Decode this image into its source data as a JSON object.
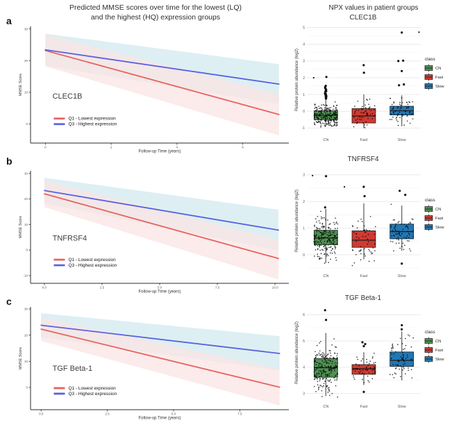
{
  "header": {
    "left_title_line1": "Predicted MMSE scores over time for the lowest (LQ)",
    "left_title_line2": "and the highest (HQ) expression groups",
    "right_title": "NPX values in patient groups"
  },
  "colors": {
    "q1_line_red": "#E8625D",
    "q3_line_blue": "#5A62E0",
    "ribbon_pink": "#FBE3E3",
    "ribbon_cyan": "#D9EDF2",
    "cn_green": "#4F9153",
    "fast_red": "#CF3A32",
    "slow_blue": "#2277B4",
    "jitter_black": "#111111"
  },
  "chart_data": [
    {
      "panel": "a",
      "line_chart": {
        "type": "line",
        "gene": "CLEC1B",
        "xlabel": "Follow-up Time (years)",
        "ylabel": "MMSE Score",
        "xlim": [
          -0.45,
          7.4
        ],
        "ylim": [
          -6,
          30.8
        ],
        "xticks": [
          {
            "v": 0,
            "label": "0"
          },
          {
            "v": 2,
            "label": "2"
          },
          {
            "v": 4,
            "label": "4"
          },
          {
            "v": 6,
            "label": "6"
          }
        ],
        "yticks": [
          {
            "v": 0,
            "label": "0"
          },
          {
            "v": 10,
            "label": "10"
          },
          {
            "v": 20,
            "label": "20"
          },
          {
            "v": 30,
            "label": "30"
          }
        ],
        "series": [
          {
            "name": "Q1 - Lowest expression",
            "color": "#E8625D",
            "x0": 0,
            "y0": 23.2,
            "x1": 7.1,
            "y1": 3.0,
            "ribbon": {
              "color": "#FBE3E3",
              "hi0": 28.2,
              "lo0": 18.2,
              "hi1": 9.5,
              "lo1": -3.6
            }
          },
          {
            "name": "Q3 - Highest expression",
            "color": "#5A62E0",
            "x0": 0,
            "y0": 23.4,
            "x1": 7.1,
            "y1": 12.6,
            "ribbon": {
              "color": "#D9EDF2",
              "hi0": 28.5,
              "lo0": 18.4,
              "hi1": 18.9,
              "lo1": 6.3
            }
          }
        ]
      },
      "box_chart": {
        "type": "boxplot",
        "title": "CLEC1B",
        "ylabel": "Relative protein abundance (log2)",
        "ylim": [
          -1.4,
          5.15
        ],
        "yticks": [
          {
            "v": -1,
            "label": "-1"
          },
          {
            "v": 0,
            "label": "0"
          },
          {
            "v": 1,
            "label": "1"
          },
          {
            "v": 2,
            "label": "2"
          },
          {
            "v": 3,
            "label": "3"
          },
          {
            "v": 4,
            "label": "4"
          },
          {
            "v": 5,
            "label": "5"
          }
        ],
        "minor_step": 0.5,
        "categories": [
          "CN",
          "Fast",
          "Slow"
        ],
        "groups": [
          {
            "name": "CN",
            "color": "#4F9153",
            "n": 215,
            "lo": -0.9,
            "q1": -0.5,
            "med": -0.25,
            "q3": 0.03,
            "hi": 0.68,
            "spread": [
              -0.95,
              0.66
            ],
            "outliers": [
              {
                "v": 0.75
              },
              {
                "v": 0.8
              },
              {
                "v": 0.85
              },
              {
                "v": 0.9
              },
              {
                "v": 0.95
              },
              {
                "v": 1.0
              },
              {
                "v": 1.05
              },
              {
                "v": 1.1
              },
              {
                "v": 1.15
              },
              {
                "v": 1.2
              },
              {
                "v": 1.25
              },
              {
                "v": 1.3
              },
              {
                "v": 1.38
              },
              {
                "v": 1.45
              },
              {
                "v": 1.52
              },
              {
                "v": 2.05
              }
            ]
          },
          {
            "name": "Fast",
            "color": "#CF3A32",
            "n": 55,
            "lo": -1.0,
            "q1": -0.7,
            "med": -0.28,
            "q3": 0.16,
            "hi": 1.0,
            "spread": [
              -1.02,
              1.0
            ],
            "outliers": [
              {
                "v": 2.3
              },
              {
                "v": 2.75
              }
            ]
          },
          {
            "name": "Slow",
            "color": "#2277B4",
            "n": 68,
            "lo": -0.9,
            "q1": -0.22,
            "med": 0.03,
            "q3": 0.3,
            "hi": 0.95,
            "spread": [
              -0.9,
              1.05
            ],
            "outliers": [
              {
                "v": 1.55,
                "dx": -4
              },
              {
                "v": 1.6,
                "dx": 3
              },
              {
                "v": 2.4,
                "dx": 0
              },
              {
                "v": 3.0,
                "dx": -5
              },
              {
                "v": 3.02,
                "dx": 2
              },
              {
                "v": 4.7,
                "dx": 0
              }
            ]
          }
        ],
        "loose_points": [
          {
            "f": 0.985,
            "v": 4.72
          },
          {
            "f": 0.06,
            "v": 2.0
          }
        ],
        "legend": {
          "title": "class",
          "items": [
            {
              "label": "CN",
              "color": "#4F9153"
            },
            {
              "label": "Fast",
              "color": "#CF3A32"
            },
            {
              "label": "Slow",
              "color": "#2277B4"
            }
          ]
        }
      }
    },
    {
      "panel": "b",
      "line_chart": {
        "type": "line",
        "gene": "TNFRSF4",
        "xlabel": "Follow-up Time (years)",
        "ylabel": "MMSE Score",
        "xlim": [
          -0.6,
          10.6
        ],
        "ylim": [
          -13,
          31
        ],
        "xticks": [
          {
            "v": 0,
            "label": "0.0"
          },
          {
            "v": 2.5,
            "label": "2.5"
          },
          {
            "v": 5,
            "label": "5.0"
          },
          {
            "v": 7.5,
            "label": "7.5"
          },
          {
            "v": 10,
            "label": "10.0"
          }
        ],
        "yticks": [
          {
            "v": -10,
            "label": "-10"
          },
          {
            "v": 0,
            "label": "0"
          },
          {
            "v": 10,
            "label": "10"
          },
          {
            "v": 20,
            "label": "20"
          },
          {
            "v": 30,
            "label": "30"
          }
        ],
        "series": [
          {
            "name": "Q1 - Lowest expression",
            "color": "#E8625D",
            "x0": 0,
            "y0": 22.0,
            "x1": 10.15,
            "y1": -3.3,
            "ribbon": {
              "color": "#FBE3E3",
              "hi0": 27.2,
              "lo0": 16.8,
              "hi1": 4.0,
              "lo1": -11.5
            }
          },
          {
            "name": "Q3 - Highest expression",
            "color": "#5A62E0",
            "x0": 0,
            "y0": 23.3,
            "x1": 10.15,
            "y1": 7.8,
            "ribbon": {
              "color": "#D9EDF2",
              "hi0": 28.3,
              "lo0": 18.3,
              "hi1": 15.8,
              "lo1": -0.2
            }
          }
        ]
      },
      "box_chart": {
        "type": "boxplot",
        "title": "TNFRSF4",
        "ylabel": "Relative protein abundance (log2)",
        "ylim": [
          -0.6,
          3.15
        ],
        "yticks": [
          {
            "v": 0,
            "label": "0"
          },
          {
            "v": 1,
            "label": "1"
          },
          {
            "v": 2,
            "label": "2"
          },
          {
            "v": 3,
            "label": "3"
          }
        ],
        "minor_step": 0.5,
        "categories": [
          "CN",
          "Fast",
          "Slow"
        ],
        "groups": [
          {
            "name": "CN",
            "color": "#4F9153",
            "n": 215,
            "lo": -0.31,
            "q1": 0.38,
            "med": 0.63,
            "q3": 0.92,
            "hi": 1.72,
            "spread": [
              -0.35,
              1.7
            ],
            "outliers": [
              {
                "v": 2.95
              },
              {
                "v": 1.78,
                "dx": -1
              }
            ]
          },
          {
            "name": "Fast",
            "color": "#CF3A32",
            "n": 55,
            "lo": -0.17,
            "q1": 0.28,
            "med": 0.55,
            "q3": 0.9,
            "hi": 1.93,
            "spread": [
              -0.45,
              1.9
            ],
            "outliers": [
              {
                "v": 2.55
              },
              {
                "v": 2.2
              }
            ]
          },
          {
            "name": "Slow",
            "color": "#2277B4",
            "n": 68,
            "lo": 0.15,
            "q1": 0.6,
            "med": 0.87,
            "q3": 1.15,
            "hi": 1.85,
            "spread": [
              0.12,
              1.9
            ],
            "outliers": [
              {
                "v": 2.4,
                "dx": -3
              },
              {
                "v": 2.25,
                "dx": 5
              },
              {
                "v": -0.33,
                "dx": 0
              }
            ]
          }
        ],
        "loose_points": [
          {
            "f": 0.05,
            "v": 2.97
          },
          {
            "f": 0.33,
            "v": 2.55
          }
        ],
        "legend": {
          "title": "class",
          "items": [
            {
              "label": "CN",
              "color": "#4F9153"
            },
            {
              "label": "Fast",
              "color": "#CF3A32"
            },
            {
              "label": "Slow",
              "color": "#2277B4"
            }
          ]
        }
      }
    },
    {
      "panel": "c",
      "line_chart": {
        "type": "line",
        "gene": "TGF Beta-1",
        "xlabel": "Follow-up Time (years)",
        "ylabel": "MMSE Score",
        "xlim": [
          -0.4,
          9.35
        ],
        "ylim": [
          -8.5,
          30.8
        ],
        "xticks": [
          {
            "v": 0,
            "label": "0.0"
          },
          {
            "v": 2.5,
            "label": "2.5"
          },
          {
            "v": 5,
            "label": "5.0"
          },
          {
            "v": 7.5,
            "label": "7.5"
          }
        ],
        "yticks": [
          {
            "v": 0,
            "label": "0"
          },
          {
            "v": 10,
            "label": "10"
          },
          {
            "v": 20,
            "label": "20"
          },
          {
            "v": 30,
            "label": "30"
          }
        ],
        "series": [
          {
            "name": "Q1 - Lowest expression",
            "color": "#E8625D",
            "x0": 0,
            "y0": 22.3,
            "x1": 9.0,
            "y1": 0.1,
            "ribbon": {
              "color": "#FBE3E3",
              "hi0": 26.8,
              "lo0": 17.8,
              "hi1": 7.0,
              "lo1": -6.9
            }
          },
          {
            "name": "Q3 - Highest expression",
            "color": "#5A62E0",
            "x0": 0,
            "y0": 23.8,
            "x1": 9.0,
            "y1": 13.0,
            "ribbon": {
              "color": "#D9EDF2",
              "hi0": 28.4,
              "lo0": 19.2,
              "hi1": 19.6,
              "lo1": 6.5
            }
          }
        ]
      },
      "box_chart": {
        "type": "boxplot",
        "title": "TGF Beta-1",
        "ylabel": "Relative protein abundance (log2)",
        "ylim": [
          2.7,
          6.4
        ],
        "yticks": [
          {
            "v": 3,
            "label": "3"
          },
          {
            "v": 4,
            "label": "4"
          },
          {
            "v": 5,
            "label": "5"
          },
          {
            "v": 6,
            "label": "6"
          }
        ],
        "minor_step": 0.5,
        "categories": [
          "CN",
          "Fast",
          "Slow"
        ],
        "groups": [
          {
            "name": "CN",
            "color": "#4F9153",
            "n": 215,
            "lo": 2.9,
            "q1": 3.62,
            "med": 3.98,
            "q3": 4.33,
            "hi": 5.3,
            "spread": [
              2.85,
              5.25
            ],
            "outliers": [
              {
                "v": 6.17
              },
              {
                "v": 5.8
              }
            ]
          },
          {
            "name": "Fast",
            "color": "#CF3A32",
            "n": 55,
            "lo": 3.32,
            "q1": 3.73,
            "med": 3.94,
            "q3": 4.1,
            "hi": 4.57,
            "spread": [
              3.3,
              4.55
            ],
            "outliers": [
              {
                "v": 4.95,
                "dx": -2
              },
              {
                "v": 4.88,
                "dx": 2
              },
              {
                "v": 4.8,
                "dx": 0
              },
              {
                "v": 3.06,
                "dx": 0
              }
            ]
          },
          {
            "name": "Slow",
            "color": "#2277B4",
            "n": 68,
            "lo": 3.5,
            "q1": 4.03,
            "med": 4.26,
            "q3": 4.58,
            "hi": 5.36,
            "spread": [
              3.48,
              5.3
            ],
            "outliers": [
              {
                "v": 5.6
              },
              {
                "v": 5.44
              }
            ]
          }
        ],
        "loose_points": [],
        "legend": {
          "title": "class",
          "items": [
            {
              "label": "CN",
              "color": "#4F9153"
            },
            {
              "label": "Fast",
              "color": "#CF3A32"
            },
            {
              "label": "Slow",
              "color": "#2277B4"
            }
          ]
        }
      }
    }
  ]
}
